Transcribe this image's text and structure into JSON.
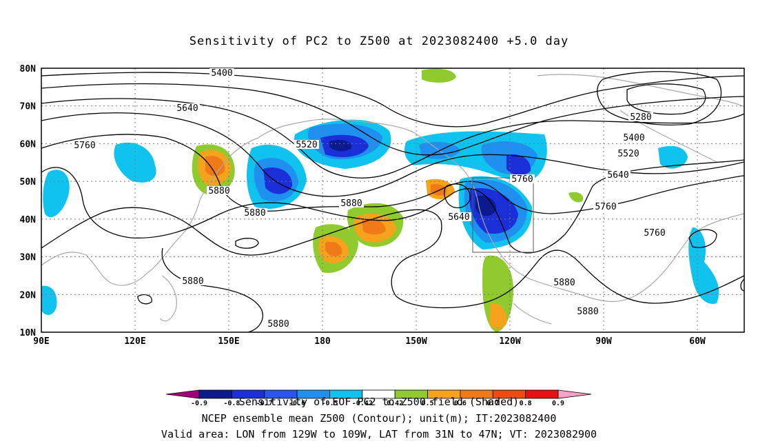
{
  "title": "Sensitivity of PC2 to Z500 at 2023082400 +5.0 day",
  "map": {
    "lat_labels": [
      "80N",
      "70N",
      "60N",
      "50N",
      "40N",
      "30N",
      "20N",
      "10N"
    ],
    "lon_labels": [
      "90E",
      "120E",
      "150E",
      "180",
      "150W",
      "120W",
      "90W",
      "60W"
    ],
    "contour_labels": [
      "5400",
      "5640",
      "5760",
      "5520",
      "5280",
      "5400",
      "5520",
      "5640",
      "5760",
      "5880",
      "5640",
      "5760",
      "5880",
      "5880",
      "5880",
      "5880",
      "5880",
      "5880",
      "5760"
    ],
    "valid_area_box": {
      "lon": [
        "129W",
        "109W"
      ],
      "lat": [
        "31N",
        "47N"
      ]
    }
  },
  "colorbar": {
    "levels": [
      "-0.9",
      "-0.8",
      "-0.7",
      "-0.6",
      "-0.5",
      "-0.42",
      "0.42",
      "0.5",
      "0.6",
      "0.7",
      "0.8",
      "0.9"
    ],
    "colors": [
      "#a4007c",
      "#0b1a8c",
      "#1a2fd8",
      "#2a55ee",
      "#1f8ff0",
      "#0fc3ee",
      "#ffffff",
      "#8fcb2e",
      "#f5a31c",
      "#f07a18",
      "#ee4a12",
      "#e81010",
      "#f7a0c8"
    ]
  },
  "captions": {
    "line1": "Sensitivity of EOF PC2 to Z500 field (Shaded)",
    "line2": "NCEP ensemble mean Z500 (Contour); unit(m); IT:2023082400",
    "line3": "Valid area: LON from 129W to 109W, LAT from 31N to 47N; VT: 2023082900"
  }
}
